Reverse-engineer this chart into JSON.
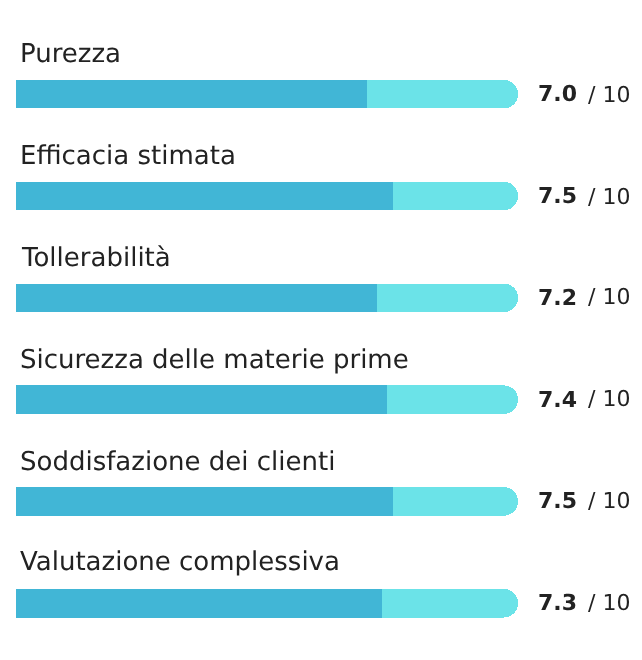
{
  "chart_data": {
    "type": "bar",
    "orientation": "horizontal",
    "stacked": true,
    "categories": [
      "Purezza",
      "Efficacia stimata",
      "Tollerabilità",
      "Sicurezza delle materie prime",
      "Soddisfazione dei clienti",
      "Valutazione complessiva"
    ],
    "series": [
      {
        "color": "#41b6d6",
        "values": [
          7.0,
          7.5,
          7.2,
          7.4,
          7.5,
          7.3
        ],
        "value_labels": [
          "7.0",
          "7.5",
          "7.2",
          "7.4",
          "7.5",
          "7.3"
        ]
      },
      {
        "color": "#6be3e8",
        "values": [
          3.0,
          2.5,
          2.8,
          2.6,
          2.5,
          2.7
        ]
      }
    ],
    "annotations": [
      "/ 10",
      "/ 10",
      "/ 10",
      "/ 10",
      "/ 10",
      "/ 10"
    ],
    "xlim": [
      0,
      10
    ],
    "tick_labels": false
  }
}
